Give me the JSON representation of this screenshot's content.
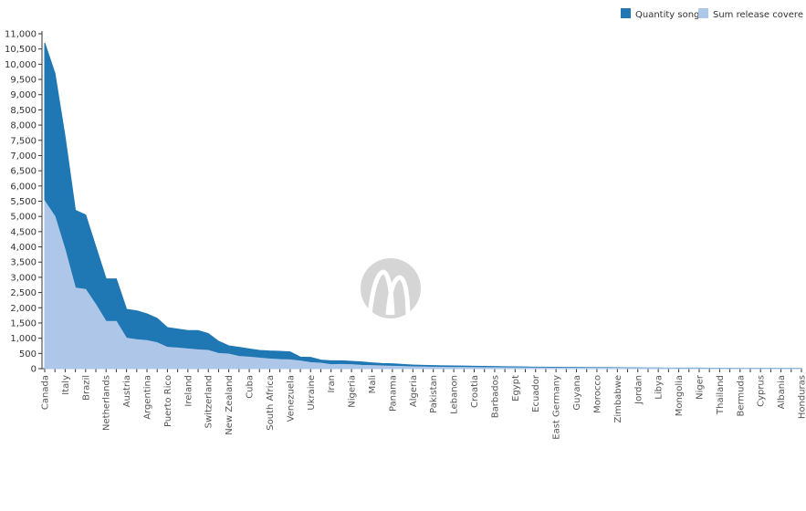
{
  "chart_data": {
    "type": "area",
    "categories": [
      "Canada",
      null,
      "Italy",
      null,
      "Brazil",
      null,
      "Netherlands",
      null,
      "Austria",
      null,
      "Argentina",
      null,
      "Puerto Rico",
      null,
      "Ireland",
      null,
      "Switzerland",
      null,
      "New Zealand",
      null,
      "Cuba",
      null,
      "South Africa",
      null,
      "Venezuela",
      null,
      "Ukraine",
      null,
      "Iran",
      null,
      "Nigeria",
      null,
      "Mali",
      null,
      "Panama",
      null,
      "Algeria",
      null,
      "Pakistan",
      null,
      "Lebanon",
      null,
      "Croatia",
      null,
      "Barbados",
      null,
      "Egypt",
      null,
      "Ecuador",
      null,
      "East Germany",
      null,
      "Guyana",
      null,
      "Morocco",
      null,
      "Zimbabwe",
      null,
      "Jordan",
      null,
      "Libya",
      null,
      "Mongolia",
      null,
      "Niger",
      null,
      "Thailand",
      null,
      "Bermuda",
      null,
      "Cyprus",
      null,
      "Albania",
      null,
      "Honduras"
    ],
    "series": [
      {
        "name": "Quantity song",
        "color": "#1f77b4",
        "values": [
          10700,
          9700,
          7600,
          5200,
          5050,
          4000,
          2950,
          2950,
          1950,
          1900,
          1800,
          1650,
          1350,
          1300,
          1250,
          1250,
          1150,
          900,
          750,
          700,
          650,
          600,
          580,
          570,
          550,
          380,
          370,
          280,
          260,
          260,
          240,
          220,
          190,
          170,
          160,
          140,
          120,
          110,
          100,
          95,
          90,
          85,
          80,
          75,
          70,
          65,
          60,
          55,
          50,
          48,
          45,
          42,
          40,
          38,
          35,
          32,
          30,
          28,
          25,
          24,
          22,
          20,
          19,
          18,
          17,
          16,
          15,
          14,
          13,
          12,
          12,
          11,
          11,
          10,
          10
        ]
      },
      {
        "name": "Sum release covere",
        "color": "#aec7e8",
        "values": [
          5500,
          5000,
          3900,
          2650,
          2600,
          2100,
          1550,
          1550,
          1000,
          950,
          920,
          850,
          700,
          680,
          650,
          620,
          600,
          500,
          480,
          400,
          380,
          350,
          320,
          300,
          290,
          250,
          200,
          180,
          130,
          140,
          130,
          110,
          100,
          90,
          80,
          70,
          60,
          55,
          50,
          45,
          42,
          40,
          38,
          35,
          32,
          30,
          28,
          26,
          24,
          22,
          20,
          19,
          18,
          17,
          16,
          15,
          14,
          13,
          12,
          11,
          10,
          10,
          9,
          9,
          8,
          8,
          7,
          7,
          6,
          6,
          5,
          5,
          5,
          5,
          5
        ]
      }
    ],
    "ylim": [
      0,
      11000
    ],
    "yticks": [
      0,
      500,
      {
        "value": 1000,
        "label": "1,000"
      },
      {
        "value": 1500,
        "label": "1,500"
      },
      {
        "value": 2000,
        "label": "2,000"
      },
      {
        "value": 2500,
        "label": "2,500"
      },
      {
        "value": 3000,
        "label": "3,000"
      },
      {
        "value": 3500,
        "label": "3,500"
      },
      {
        "value": 4000,
        "label": "4,000"
      },
      {
        "value": 4500,
        "label": "4,500"
      },
      {
        "value": 5000,
        "label": "5,000"
      },
      {
        "value": 5500,
        "label": "5,500"
      },
      {
        "value": 6000,
        "label": "6,000"
      },
      {
        "value": 6500,
        "label": "6,500"
      },
      {
        "value": 7000,
        "label": "7,000"
      },
      {
        "value": 7500,
        "label": "7,500"
      },
      {
        "value": 8000,
        "label": "8,000"
      },
      {
        "value": 8500,
        "label": "8,500"
      },
      {
        "value": 9000,
        "label": "9,000"
      },
      {
        "value": 9500,
        "label": "9,500"
      },
      {
        "value": 10000,
        "label": "10,000"
      },
      {
        "value": 10500,
        "label": "10,500"
      },
      {
        "value": 11000,
        "label": "11,000"
      }
    ],
    "legend": "top-right"
  }
}
